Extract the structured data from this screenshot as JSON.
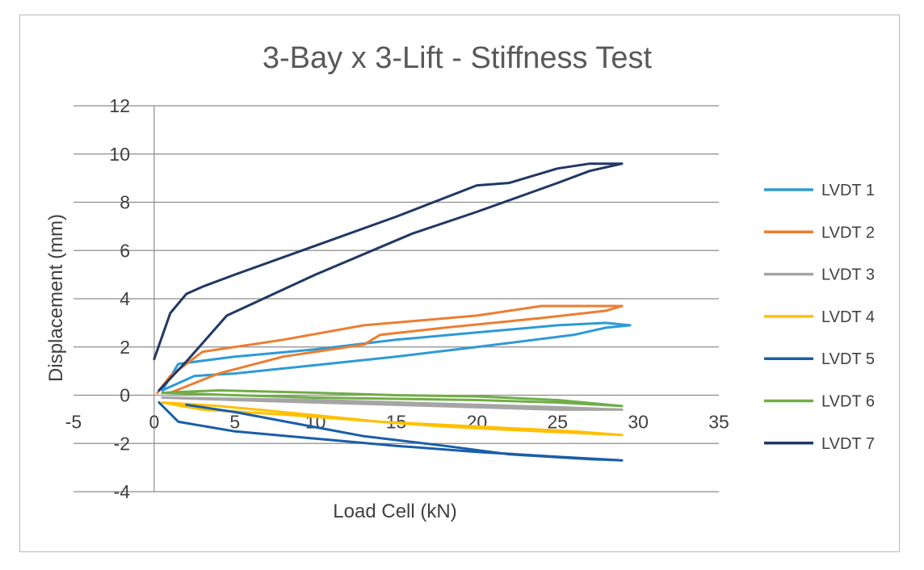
{
  "chart_data": {
    "type": "scatter",
    "title": "3-Bay x 3-Lift - Stiffness Test",
    "xlabel": "Load Cell (kN)",
    "ylabel": "Displacement (mm)",
    "xlim": [
      -5,
      35
    ],
    "ylim": [
      -4,
      12
    ],
    "x_ticks": [
      -5,
      0,
      5,
      10,
      15,
      20,
      25,
      30,
      35
    ],
    "y_ticks": [
      -4,
      -2,
      0,
      2,
      4,
      6,
      8,
      10,
      12
    ],
    "grid": "horizontal",
    "legend_position": "right",
    "series": [
      {
        "name": "LVDT 1",
        "color": "#2e9ad6",
        "points": [
          [
            0.5,
            0.2
          ],
          [
            1.5,
            1.3
          ],
          [
            5,
            1.6
          ],
          [
            10,
            1.9
          ],
          [
            15,
            2.3
          ],
          [
            20,
            2.6
          ],
          [
            25,
            2.9
          ],
          [
            28,
            3.0
          ],
          [
            29.5,
            2.9
          ],
          [
            28,
            2.8
          ],
          [
            26,
            2.5
          ],
          [
            20,
            2.0
          ],
          [
            15,
            1.6
          ],
          [
            10,
            1.25
          ],
          [
            5,
            0.9
          ],
          [
            2.5,
            0.8
          ],
          [
            0.5,
            0.2
          ]
        ]
      },
      {
        "name": "LVDT 2",
        "color": "#ed7d31",
        "points": [
          [
            0.2,
            0.1
          ],
          [
            1,
            0.8
          ],
          [
            3,
            1.8
          ],
          [
            8,
            2.3
          ],
          [
            13,
            2.9
          ],
          [
            20,
            3.3
          ],
          [
            24,
            3.7
          ],
          [
            29,
            3.7
          ],
          [
            28,
            3.5
          ],
          [
            24,
            3.2
          ],
          [
            18,
            2.8
          ],
          [
            14,
            2.5
          ],
          [
            13,
            2.1
          ],
          [
            8,
            1.6
          ],
          [
            4,
            0.9
          ],
          [
            1,
            0.1
          ]
        ]
      },
      {
        "name": "LVDT 3",
        "color": "#a5a5a5",
        "points": [
          [
            0.5,
            -0.1
          ],
          [
            5,
            -0.2
          ],
          [
            10,
            -0.3
          ],
          [
            15,
            -0.4
          ],
          [
            20,
            -0.5
          ],
          [
            25,
            -0.6
          ],
          [
            29,
            -0.6
          ],
          [
            25,
            -0.5
          ],
          [
            20,
            -0.4
          ],
          [
            10,
            -0.2
          ],
          [
            0.5,
            -0.1
          ]
        ]
      },
      {
        "name": "LVDT 4",
        "color": "#ffc000",
        "points": [
          [
            0.5,
            -0.3
          ],
          [
            3,
            -0.6
          ],
          [
            8,
            -0.8
          ],
          [
            12,
            -1.0
          ],
          [
            18,
            -1.3
          ],
          [
            24,
            -1.5
          ],
          [
            29,
            -1.65
          ],
          [
            26,
            -1.5
          ],
          [
            20,
            -1.3
          ],
          [
            14,
            -1.1
          ],
          [
            8,
            -0.7
          ],
          [
            4,
            -0.45
          ],
          [
            0.5,
            -0.3
          ]
        ]
      },
      {
        "name": "LVDT 5",
        "color": "#1a5ea8",
        "points": [
          [
            0.3,
            -0.3
          ],
          [
            1.5,
            -1.1
          ],
          [
            5,
            -1.5
          ],
          [
            10,
            -1.8
          ],
          [
            15,
            -2.1
          ],
          [
            20,
            -2.35
          ],
          [
            25,
            -2.55
          ],
          [
            29,
            -2.7
          ],
          [
            27,
            -2.65
          ],
          [
            22,
            -2.45
          ],
          [
            18,
            -2.1
          ],
          [
            13,
            -1.7
          ],
          [
            9,
            -1.2
          ],
          [
            5,
            -0.7
          ],
          [
            2,
            -0.4
          ]
        ]
      },
      {
        "name": "LVDT 6",
        "color": "#70ad47",
        "points": [
          [
            0.5,
            0.1
          ],
          [
            4,
            0.2
          ],
          [
            10,
            0.1
          ],
          [
            15,
            0.0
          ],
          [
            20,
            -0.05
          ],
          [
            25,
            -0.2
          ],
          [
            29,
            -0.45
          ],
          [
            25,
            -0.3
          ],
          [
            20,
            -0.2
          ],
          [
            15,
            -0.15
          ],
          [
            10,
            -0.1
          ],
          [
            5,
            0.0
          ],
          [
            0.5,
            0.1
          ]
        ]
      },
      {
        "name": "LVDT 7",
        "color": "#203864",
        "points": [
          [
            0,
            1.5
          ],
          [
            1,
            3.4
          ],
          [
            2,
            4.2
          ],
          [
            3,
            4.5
          ],
          [
            5,
            5.0
          ],
          [
            10,
            6.2
          ],
          [
            15,
            7.4
          ],
          [
            20,
            8.7
          ],
          [
            22,
            8.8
          ],
          [
            25,
            9.4
          ],
          [
            27,
            9.6
          ],
          [
            29,
            9.6
          ],
          [
            27,
            9.3
          ],
          [
            25,
            8.8
          ],
          [
            20,
            7.6
          ],
          [
            16,
            6.7
          ],
          [
            10,
            5.0
          ],
          [
            4.5,
            3.3
          ],
          [
            2,
            1.4
          ],
          [
            0.3,
            0.2
          ]
        ]
      }
    ]
  }
}
